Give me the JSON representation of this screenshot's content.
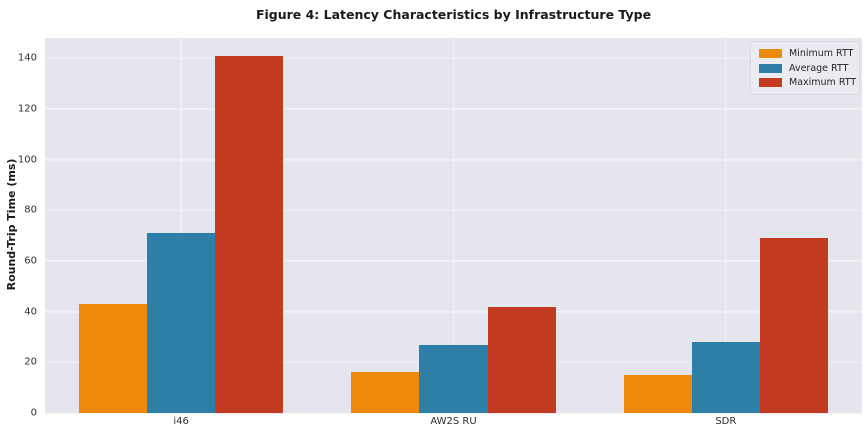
{
  "figure": {
    "title": "Figure 4: Latency Characteristics by Infrastructure Type"
  },
  "chart_data": {
    "type": "bar",
    "title": "Figure 4: Latency Characteristics by Infrastructure Type",
    "xlabel": "",
    "ylabel": "Round-Trip Time (ms)",
    "categories": [
      "i46",
      "AW2S RU",
      "SDR"
    ],
    "series": [
      {
        "name": "Minimum RTT",
        "color": "#EE8A0B",
        "values": [
          43,
          16,
          15
        ]
      },
      {
        "name": "Average RTT",
        "color": "#2E7FA7",
        "values": [
          71,
          27,
          28
        ]
      },
      {
        "name": "Maximum RTT",
        "color": "#C23A20",
        "values": [
          141,
          42,
          69
        ]
      }
    ],
    "ylim": [
      0,
      148
    ],
    "yticks": [
      0,
      20,
      40,
      60,
      80,
      100,
      120,
      140
    ],
    "grid": true,
    "legend_position": "upper right",
    "colors": {
      "plot_bg": "#E5E5EE",
      "gridline": "#F1F1F6",
      "legend_bg": "#EBEBF2",
      "text": "#262626"
    }
  }
}
